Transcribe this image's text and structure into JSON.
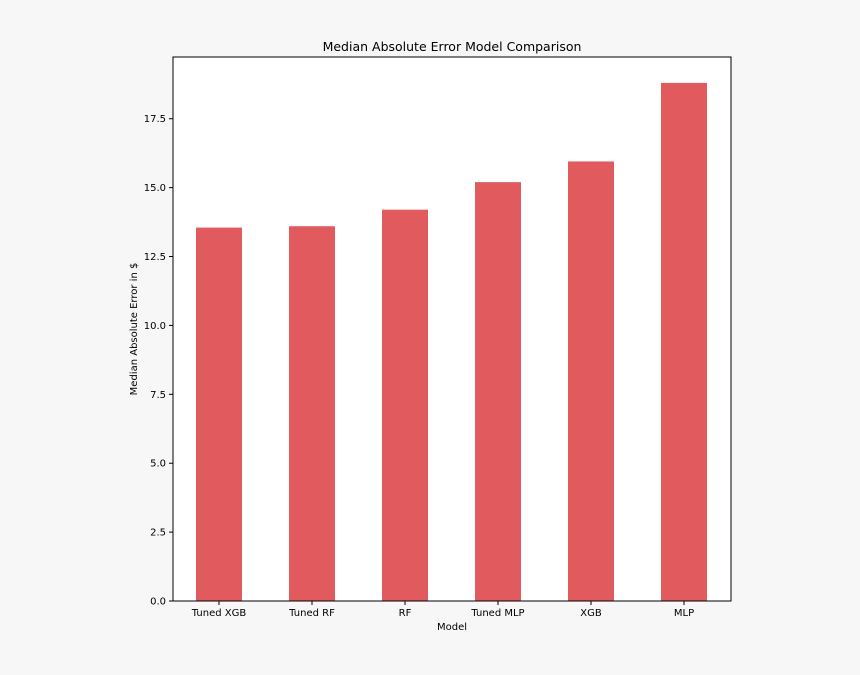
{
  "chart_data": {
    "type": "bar",
    "title": "Median Absolute Error Model Comparison",
    "xlabel": "Model",
    "ylabel": "Median Absolute Error in $",
    "categories": [
      "Tuned XGB",
      "Tuned RF",
      "RF",
      "Tuned MLP",
      "XGB",
      "MLP"
    ],
    "values": [
      13.55,
      13.6,
      14.2,
      15.2,
      15.95,
      18.8
    ],
    "ylim": [
      0,
      19.74
    ],
    "yticks": [
      "0.0",
      "2.5",
      "5.0",
      "7.5",
      "10.0",
      "12.5",
      "15.0",
      "17.5"
    ],
    "grid": false,
    "legend": "none",
    "colors": {
      "bar": "#e15b5e",
      "frame": "#000000",
      "plot_background": "#ffffff",
      "page_background": "#f7f7f7"
    }
  }
}
